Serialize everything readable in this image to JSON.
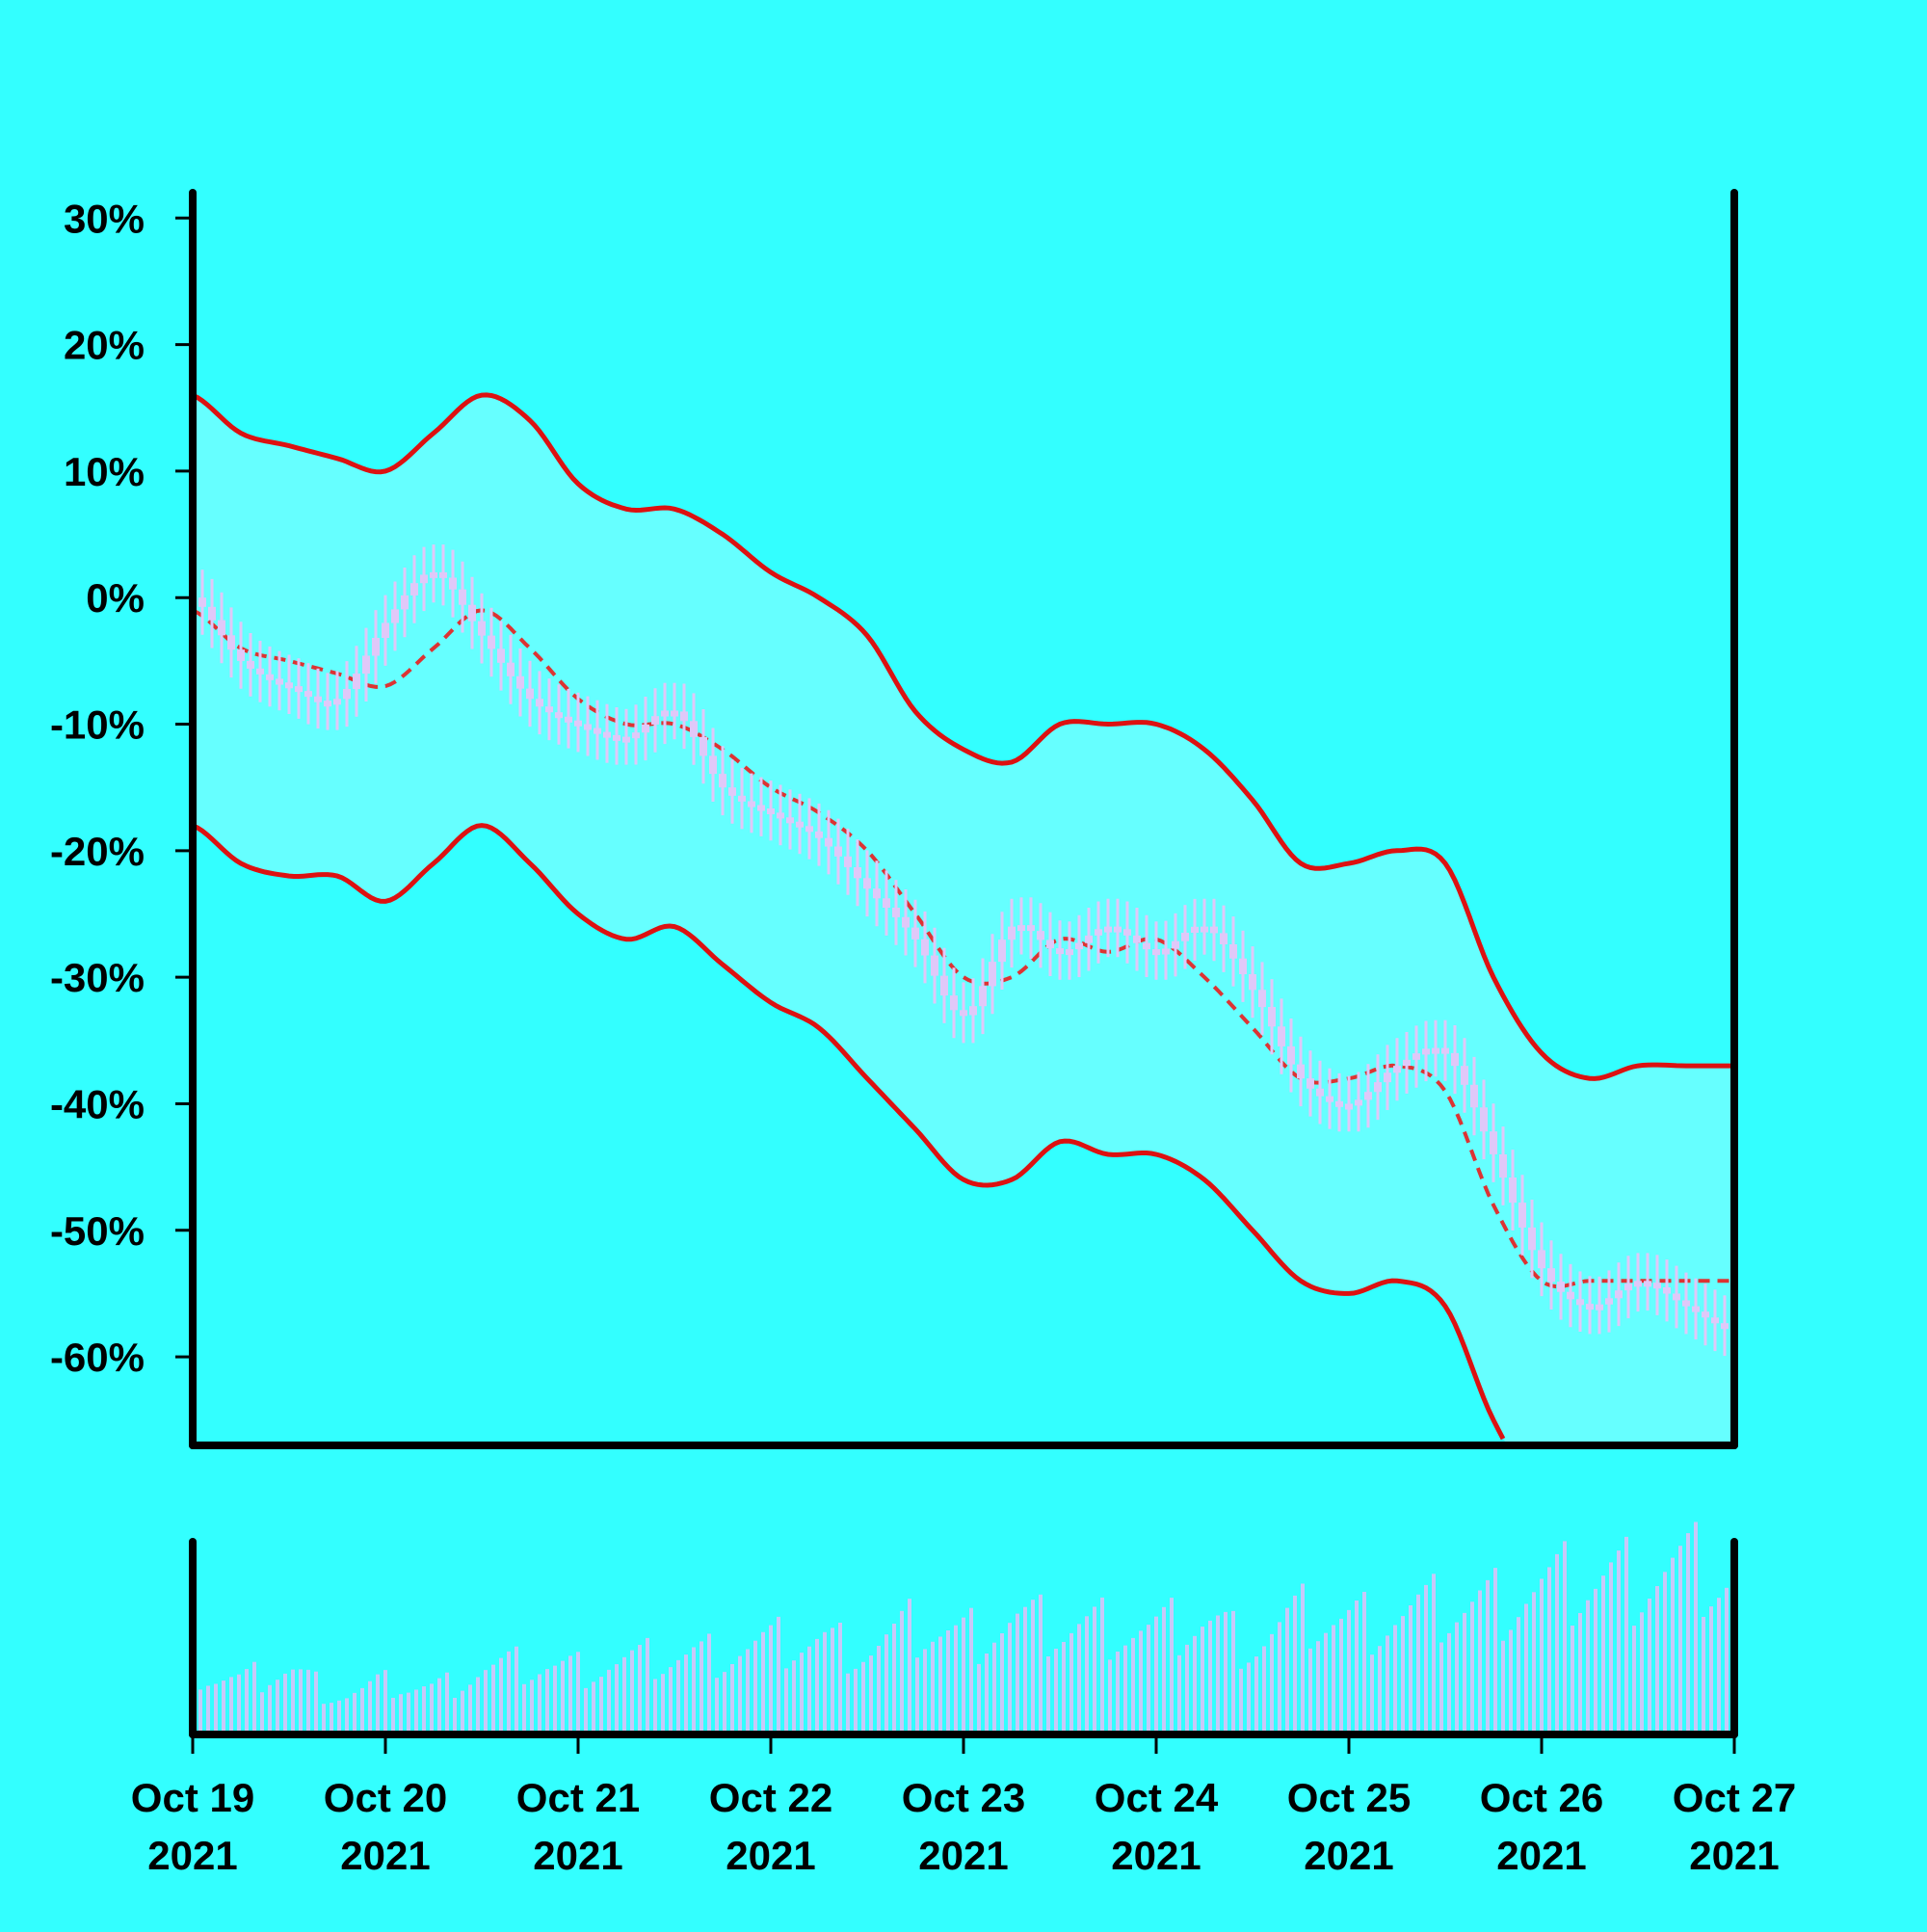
{
  "chart_data": {
    "type": "line",
    "title": "",
    "xlabel": "",
    "ylabel": "",
    "x_range": [
      "2021-10-19",
      "2021-10-27"
    ],
    "ylim": [
      -67,
      32
    ],
    "y_ticks": [
      30,
      20,
      10,
      0,
      -10,
      -20,
      -30,
      -40,
      -50,
      -60
    ],
    "y_tick_labels": [
      "30%",
      "20%",
      "10%",
      "0%",
      "-10%",
      "-20%",
      "-30%",
      "-40%",
      "-50%",
      "-60%"
    ],
    "x_ticks": [
      {
        "date": "2021-10-19",
        "line1": "Oct 19",
        "line2": "2021"
      },
      {
        "date": "2021-10-20",
        "line1": "Oct 20",
        "line2": "2021"
      },
      {
        "date": "2021-10-21",
        "line1": "Oct 21",
        "line2": "2021"
      },
      {
        "date": "2021-10-22",
        "line1": "Oct 22",
        "line2": "2021"
      },
      {
        "date": "2021-10-23",
        "line1": "Oct 23",
        "line2": "2021"
      },
      {
        "date": "2021-10-24",
        "line1": "Oct 24",
        "line2": "2021"
      },
      {
        "date": "2021-10-25",
        "line1": "Oct 25",
        "line2": "2021"
      },
      {
        "date": "2021-10-26",
        "line1": "Oct 26",
        "line2": "2021"
      },
      {
        "date": "2021-10-27",
        "line1": "Oct 27",
        "line2": "2021"
      }
    ],
    "grid": false,
    "legend": "none",
    "colors": {
      "background": "#33FFFF",
      "band_fill": "#66FFFF",
      "band_line": "#DD1111",
      "mid_line": "#DD3333",
      "candles": "#E0C8F8",
      "volume": "#C8C8F8",
      "axis": "#000000"
    },
    "series": [
      {
        "x": [
          "2021-10-19T00:00",
          "2021-10-19T06:00",
          "2021-10-19T12:00",
          "2021-10-19T18:00",
          "2021-10-20T00:00",
          "2021-10-20T06:00",
          "2021-10-20T12:00",
          "2021-10-20T18:00",
          "2021-10-21T00:00",
          "2021-10-21T06:00",
          "2021-10-21T12:00",
          "2021-10-21T18:00",
          "2021-10-22T00:00",
          "2021-10-22T06:00",
          "2021-10-22T12:00",
          "2021-10-22T18:00",
          "2021-10-23T00:00",
          "2021-10-23T06:00",
          "2021-10-23T12:00",
          "2021-10-23T18:00",
          "2021-10-24T00:00",
          "2021-10-24T06:00",
          "2021-10-24T12:00",
          "2021-10-24T18:00",
          "2021-10-25T00:00",
          "2021-10-25T06:00",
          "2021-10-25T12:00",
          "2021-10-25T18:00",
          "2021-10-26T00:00",
          "2021-10-26T06:00",
          "2021-10-26T12:00",
          "2021-10-26T18:00",
          "2021-10-27T00:00"
        ],
        "upper": [
          16,
          13,
          12,
          11,
          10,
          13,
          16,
          14,
          9,
          7,
          7,
          5,
          2,
          0,
          -3,
          -9,
          -12,
          -13,
          -10,
          -10,
          -10,
          -12,
          -16,
          -21,
          -21,
          -20,
          -21,
          -30,
          -36,
          -38,
          -37,
          -37,
          -37
        ],
        "middle": [
          -1,
          -4,
          -5,
          -6,
          -7,
          -4,
          -1,
          -4,
          -8,
          -10,
          -10,
          -12,
          -15,
          -17,
          -20,
          -25,
          -30,
          -30,
          -27,
          -28,
          -27,
          -30,
          -34,
          -38,
          -38,
          -37,
          -39,
          -48,
          -54,
          -54,
          -54,
          -54,
          -54
        ],
        "lower": [
          -18,
          -21,
          -22,
          -22,
          -24,
          -21,
          -18,
          -21,
          -25,
          -27,
          -26,
          -29,
          -32,
          -34,
          -38,
          -42,
          -46,
          -46,
          -43,
          -44,
          -44,
          -46,
          -50,
          -54,
          -55,
          -54,
          -56,
          -65,
          -71,
          -72,
          -72,
          -72,
          -72
        ]
      },
      {
        "x": [
          "2021-10-19T00:00",
          "2021-10-19T06:00",
          "2021-10-19T12:00",
          "2021-10-19T18:00",
          "2021-10-20T00:00",
          "2021-10-20T06:00",
          "2021-10-20T12:00",
          "2021-10-20T18:00",
          "2021-10-21T00:00",
          "2021-10-21T06:00",
          "2021-10-21T12:00",
          "2021-10-21T18:00",
          "2021-10-22T00:00",
          "2021-10-22T06:00",
          "2021-10-22T12:00",
          "2021-10-22T18:00",
          "2021-10-23T00:00",
          "2021-10-23T06:00",
          "2021-10-23T12:00",
          "2021-10-23T18:00",
          "2021-10-24T00:00",
          "2021-10-24T06:00",
          "2021-10-24T12:00",
          "2021-10-24T18:00",
          "2021-10-25T00:00",
          "2021-10-25T06:00",
          "2021-10-25T12:00",
          "2021-10-25T18:00",
          "2021-10-26T00:00",
          "2021-10-26T06:00",
          "2021-10-26T12:00",
          "2021-10-26T18:00",
          "2021-10-27T00:00"
        ],
        "price": [
          0,
          -5,
          -7,
          -8,
          -2,
          2,
          -3,
          -8,
          -10,
          -11,
          -9,
          -15,
          -17,
          -19,
          -23,
          -27,
          -33,
          -26,
          -28,
          -26,
          -28,
          -26,
          -31,
          -38,
          -40,
          -37,
          -36,
          -44,
          -53,
          -56,
          -54,
          -56,
          -58
        ],
        "volume": [
          45,
          40,
          48,
          30,
          38,
          35,
          48,
          52,
          50,
          55,
          58,
          62,
          68,
          70,
          65,
          80,
          75,
          85,
          80,
          82,
          78,
          85,
          70,
          88,
          85,
          90,
          95,
          100,
          110,
          115,
          120,
          125,
          115
        ]
      }
    ]
  }
}
